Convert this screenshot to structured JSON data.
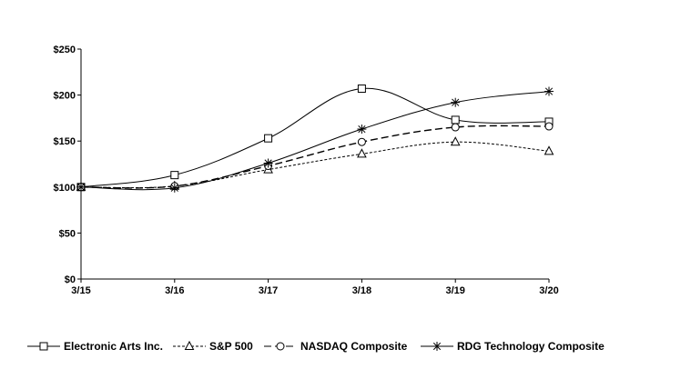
{
  "chart_data": {
    "type": "line",
    "title": "",
    "xlabel": "",
    "ylabel": "",
    "categories": [
      "3/15",
      "3/16",
      "3/17",
      "3/18",
      "3/19",
      "3/20"
    ],
    "y_ticks": [
      "$0",
      "$50",
      "$100",
      "$150",
      "$200",
      "$250"
    ],
    "ylim": [
      0,
      250
    ],
    "grid": false,
    "legend_position": "bottom",
    "series": [
      {
        "name": "Electronic Arts Inc.",
        "values": [
          100,
          113,
          153,
          207,
          173,
          171
        ],
        "marker": "square",
        "dash": "solid",
        "color": "#000000"
      },
      {
        "name": "S&P 500",
        "values": [
          100,
          101,
          119,
          136,
          149,
          139
        ],
        "marker": "triangle",
        "dash": "dotted",
        "color": "#000000"
      },
      {
        "name": "NASDAQ Composite",
        "values": [
          100,
          101,
          123,
          149,
          165,
          166
        ],
        "marker": "circle",
        "dash": "dashed",
        "color": "#000000"
      },
      {
        "name": "RDG Technology Composite",
        "values": [
          100,
          99,
          126,
          163,
          192,
          204
        ],
        "marker": "star",
        "dash": "solid",
        "color": "#000000"
      }
    ]
  }
}
